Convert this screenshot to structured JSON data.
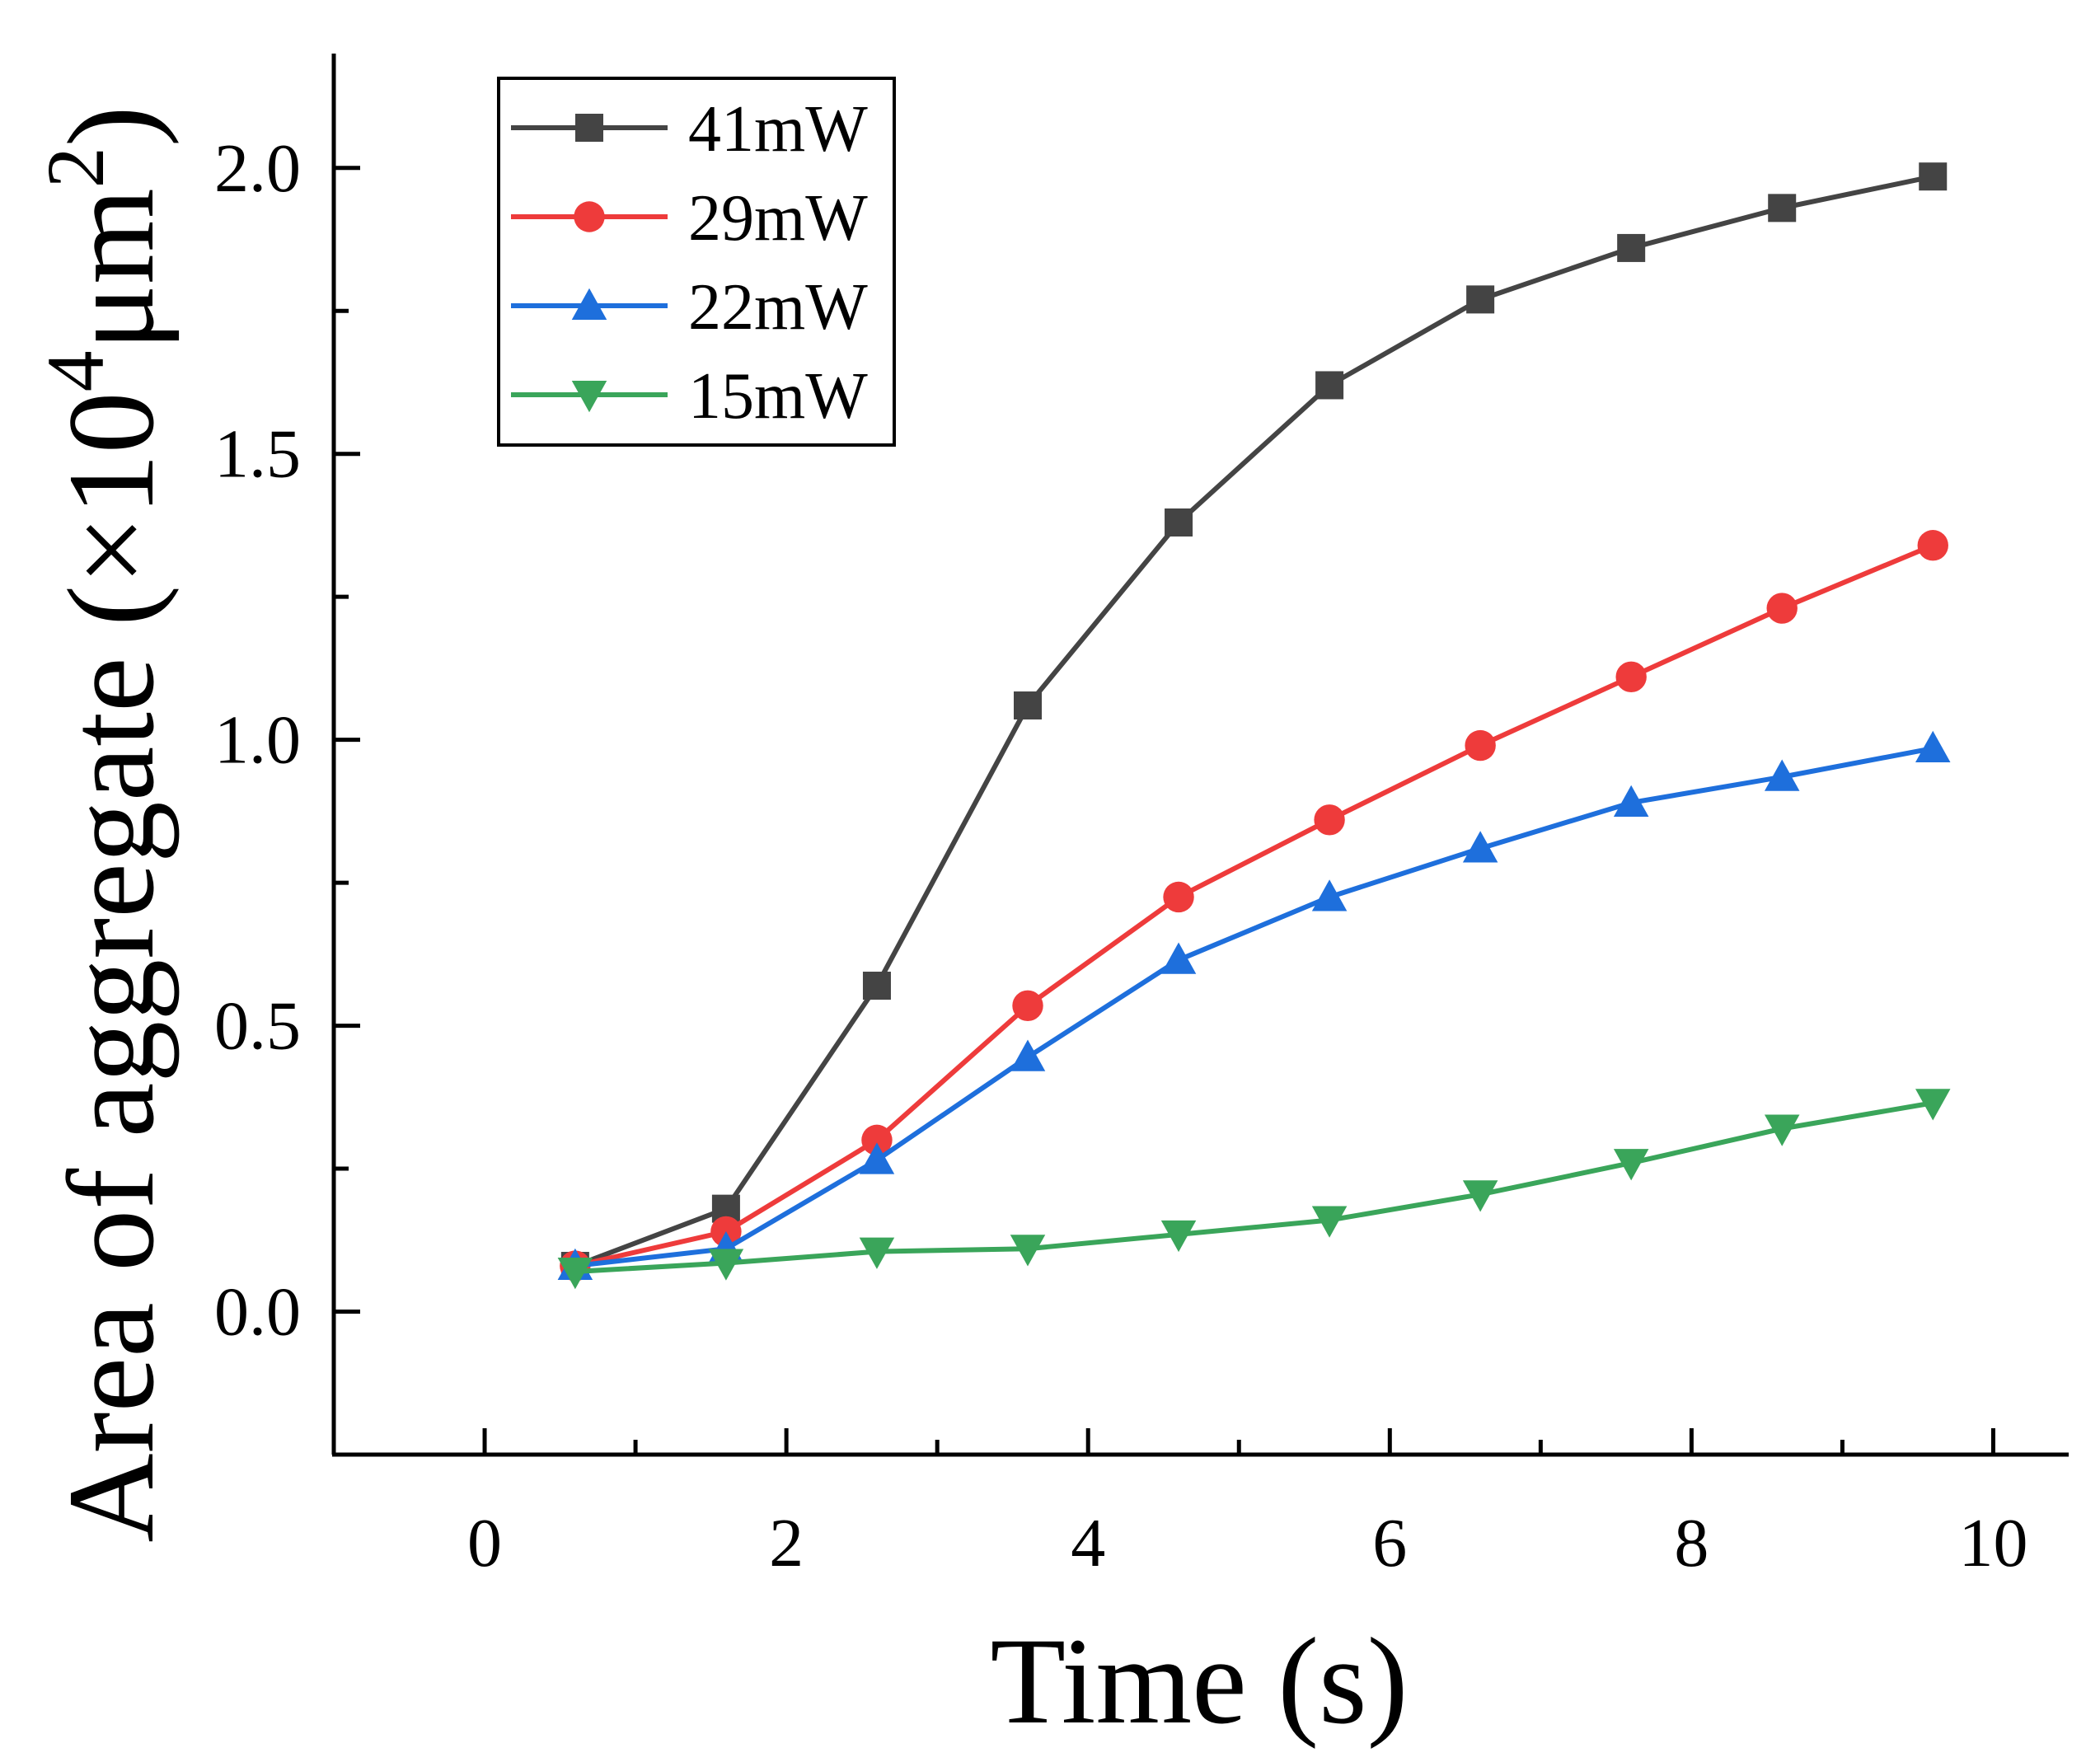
{
  "chart_data": {
    "type": "line",
    "xlabel": "Time (s)",
    "ylabel": {
      "prefix": "Area of aggregate (×10",
      "exp1": "4",
      "mid": "μm",
      "exp2": "2",
      "suffix": ")"
    },
    "xlim": [
      -1,
      10.5
    ],
    "ylim": [
      -0.25,
      2.2
    ],
    "x_ticks": [
      0,
      2,
      4,
      6,
      8,
      10
    ],
    "x_tick_labels": [
      "0",
      "2",
      "4",
      "6",
      "8",
      "10"
    ],
    "x_minor_ticks": [
      1,
      3,
      5,
      7,
      9
    ],
    "y_ticks": [
      0.0,
      0.5,
      1.0,
      1.5,
      2.0
    ],
    "y_tick_labels": [
      "0.0",
      "0.5",
      "1.0",
      "1.5",
      "2.0"
    ],
    "y_minor_ticks": [
      0.25,
      0.75,
      1.25,
      1.75
    ],
    "grid": false,
    "legend_position": "top-left",
    "x": [
      0.6,
      1.6,
      2.6,
      3.6,
      4.6,
      5.6,
      6.6,
      7.6,
      8.6,
      9.6
    ],
    "series": [
      {
        "name": "41mW",
        "color": "#444444",
        "marker": "square",
        "values": [
          0.08,
          0.18,
          0.57,
          1.06,
          1.38,
          1.62,
          1.77,
          1.86,
          1.93,
          1.985
        ]
      },
      {
        "name": "29mW",
        "color": "#ee3b3b",
        "marker": "circle",
        "values": [
          0.08,
          0.14,
          0.3,
          0.535,
          0.725,
          0.86,
          0.99,
          1.11,
          1.23,
          1.34
        ]
      },
      {
        "name": "22mW",
        "color": "#1e6fdc",
        "marker": "triangle-up",
        "values": [
          0.08,
          0.11,
          0.265,
          0.445,
          0.615,
          0.725,
          0.81,
          0.89,
          0.935,
          0.985
        ]
      },
      {
        "name": "15mW",
        "color": "#3aa55a",
        "marker": "triangle-down",
        "values": [
          0.07,
          0.085,
          0.105,
          0.11,
          0.135,
          0.16,
          0.205,
          0.26,
          0.32,
          0.365
        ]
      }
    ]
  }
}
